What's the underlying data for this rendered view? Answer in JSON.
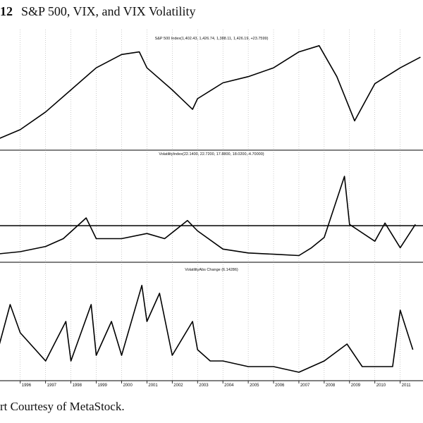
{
  "figure": {
    "number": "12",
    "title": "S&P 500, VIX, and VIX Volatility",
    "credit": "rt Courtesy of MetaStock."
  },
  "chart_data": [
    {
      "type": "line",
      "title": "S&P 500 Index(1,402.43, 1,426.74, 1,388.11, 1,426.19, +23.7599)",
      "x": [
        "1995",
        "1996",
        "1997",
        "1998",
        "1999",
        "2000",
        "2000.7",
        "2001",
        "2002",
        "2002.8",
        "2003",
        "2004",
        "2005",
        "2006",
        "2007",
        "2007.8",
        "2008.5",
        "2009.2",
        "2010",
        "2011",
        "2011.8"
      ],
      "values": [
        480,
        600,
        800,
        1050,
        1300,
        1450,
        1480,
        1300,
        1050,
        830,
        950,
        1130,
        1200,
        1300,
        1480,
        1550,
        1200,
        700,
        1120,
        1300,
        1420
      ],
      "ylim": [
        400,
        1700
      ]
    },
    {
      "type": "line",
      "title": "VolatilityIndex(22.1400, 22.7200, 17.8800, 18.0200,-4.70000)",
      "x": [
        "1995",
        "1996",
        "1997",
        "1997.7",
        "1998.6",
        "1999",
        "2000",
        "2001",
        "2001.7",
        "2002.6",
        "2003",
        "2004",
        "2005",
        "2006",
        "2007",
        "2007.5",
        "2008",
        "2008.8",
        "2009",
        "2010",
        "2010.4",
        "2011",
        "2011.6"
      ],
      "values": [
        12,
        14,
        18,
        24,
        40,
        24,
        24,
        28,
        24,
        38,
        30,
        16,
        13,
        12,
        11,
        17,
        25,
        72,
        35,
        22,
        36,
        17,
        35
      ],
      "reference_line": 34,
      "ylim": [
        8,
        90
      ]
    },
    {
      "type": "line",
      "title": "VolatilityAbs Change (6.14286)",
      "x": [
        "1995",
        "1995.6",
        "1996",
        "1997",
        "1997.8",
        "1998",
        "1998.8",
        "1999",
        "1999.6",
        "2000",
        "2000.8",
        "2001",
        "2001.5",
        "2002",
        "2002.8",
        "2003",
        "2003.5",
        "2004",
        "2005",
        "2006",
        "2007",
        "2008",
        "2008.9",
        "2009.5",
        "2010",
        "2010.7",
        "2011",
        "2011.5"
      ],
      "values": [
        1.5,
        6.5,
        4,
        1.5,
        5,
        1.5,
        6.5,
        2,
        5,
        2,
        8.2,
        5,
        7.5,
        2,
        5,
        2.5,
        1.5,
        1.5,
        1,
        1,
        0.5,
        1.5,
        3,
        1,
        1,
        1,
        6,
        2.5
      ],
      "ylim": [
        0,
        10
      ]
    }
  ],
  "x_axis": {
    "ticks": [
      "1996",
      "1997",
      "1998",
      "1999",
      "2000",
      "2001",
      "2002",
      "2003",
      "2004",
      "2005",
      "2006",
      "2007",
      "2008",
      "2009",
      "2010",
      "2011"
    ],
    "range": [
      1995.2,
      2011.9
    ]
  }
}
